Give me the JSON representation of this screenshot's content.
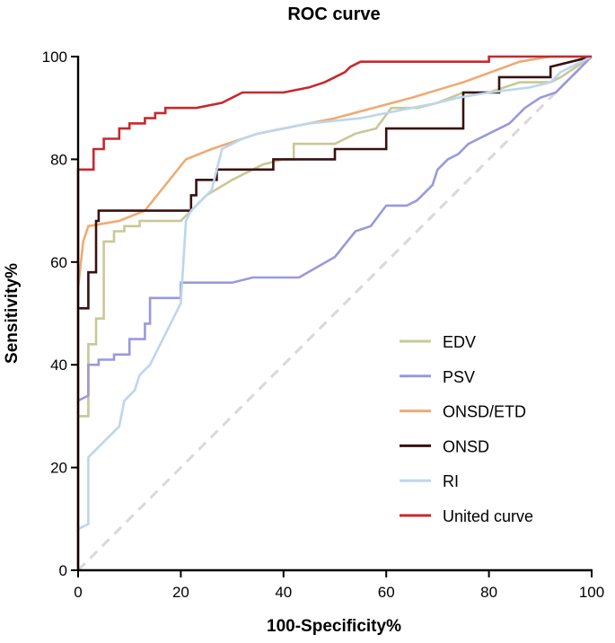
{
  "chart_data": {
    "type": "line",
    "title": "ROC curve",
    "xlabel": "100-Specificity%",
    "ylabel": "Sensitivity%",
    "xlim": [
      0,
      100
    ],
    "ylim": [
      0,
      100
    ],
    "xticks": [
      0,
      20,
      40,
      60,
      80,
      100
    ],
    "yticks": [
      0,
      20,
      40,
      60,
      80,
      100
    ],
    "legend_position": "bottom-right",
    "reference_line": {
      "name": "Reference",
      "color": "#d9d9d9",
      "style": "dashed",
      "points": [
        [
          0,
          0
        ],
        [
          100,
          100
        ]
      ]
    },
    "series": [
      {
        "name": "EDV",
        "color": "#c8c896",
        "points": [
          [
            0,
            30
          ],
          [
            2,
            30
          ],
          [
            2,
            44
          ],
          [
            3.5,
            44
          ],
          [
            3.5,
            49
          ],
          [
            5,
            49
          ],
          [
            5,
            64
          ],
          [
            7,
            64
          ],
          [
            7,
            66
          ],
          [
            9,
            66
          ],
          [
            9,
            67
          ],
          [
            12,
            67
          ],
          [
            12,
            68
          ],
          [
            20,
            68
          ],
          [
            22,
            70
          ],
          [
            25,
            73
          ],
          [
            30,
            76
          ],
          [
            36,
            79
          ],
          [
            40,
            80
          ],
          [
            42,
            80
          ],
          [
            42,
            83
          ],
          [
            50,
            83
          ],
          [
            54,
            85
          ],
          [
            58,
            86
          ],
          [
            61,
            90
          ],
          [
            66,
            90
          ],
          [
            70,
            91
          ],
          [
            75,
            93
          ],
          [
            80,
            93
          ],
          [
            86,
            95
          ],
          [
            92,
            95
          ],
          [
            94,
            96
          ],
          [
            100,
            100
          ]
        ]
      },
      {
        "name": "PSV",
        "color": "#9999dd",
        "points": [
          [
            0,
            33
          ],
          [
            2,
            34
          ],
          [
            2,
            40
          ],
          [
            4,
            40
          ],
          [
            4,
            41
          ],
          [
            7,
            41
          ],
          [
            7,
            42
          ],
          [
            10,
            42
          ],
          [
            10,
            45
          ],
          [
            13,
            45
          ],
          [
            13,
            48
          ],
          [
            14,
            48
          ],
          [
            14,
            53
          ],
          [
            20,
            53
          ],
          [
            20,
            56
          ],
          [
            30,
            56
          ],
          [
            34,
            57
          ],
          [
            43,
            57
          ],
          [
            50,
            61
          ],
          [
            54,
            66
          ],
          [
            57,
            67
          ],
          [
            60,
            71
          ],
          [
            64,
            71
          ],
          [
            66,
            72
          ],
          [
            69,
            75
          ],
          [
            70,
            78
          ],
          [
            72,
            80
          ],
          [
            74,
            81
          ],
          [
            76,
            83
          ],
          [
            80,
            85
          ],
          [
            84,
            87
          ],
          [
            87,
            90
          ],
          [
            90,
            92
          ],
          [
            93,
            93
          ],
          [
            95,
            95
          ],
          [
            100,
            100
          ]
        ]
      },
      {
        "name": "ONSD/ETD",
        "color": "#f0aa72",
        "points": [
          [
            0,
            55
          ],
          [
            1,
            64
          ],
          [
            2,
            67
          ],
          [
            8,
            68
          ],
          [
            13,
            70
          ],
          [
            17,
            75
          ],
          [
            21,
            80
          ],
          [
            26,
            82
          ],
          [
            35,
            85
          ],
          [
            50,
            88
          ],
          [
            65,
            92
          ],
          [
            75,
            95
          ],
          [
            86,
            99
          ],
          [
            92,
            100
          ],
          [
            100,
            100
          ]
        ]
      },
      {
        "name": "ONSD",
        "color": "#3a1010",
        "points": [
          [
            0,
            51
          ],
          [
            2,
            51
          ],
          [
            2,
            58
          ],
          [
            3.5,
            58
          ],
          [
            3.5,
            68
          ],
          [
            4,
            68
          ],
          [
            4,
            70
          ],
          [
            20,
            70
          ],
          [
            22,
            70
          ],
          [
            22,
            73
          ],
          [
            23,
            73
          ],
          [
            23,
            76
          ],
          [
            27,
            76
          ],
          [
            27,
            78
          ],
          [
            38,
            78
          ],
          [
            38,
            80
          ],
          [
            50,
            80
          ],
          [
            50,
            82
          ],
          [
            60,
            82
          ],
          [
            60,
            86
          ],
          [
            75,
            86
          ],
          [
            75,
            93
          ],
          [
            82,
            93
          ],
          [
            82,
            96
          ],
          [
            92,
            96
          ],
          [
            92,
            98
          ],
          [
            100,
            100
          ]
        ]
      },
      {
        "name": "RI",
        "color": "#bcd6ee",
        "points": [
          [
            0,
            8
          ],
          [
            2,
            9
          ],
          [
            2,
            22
          ],
          [
            4,
            24
          ],
          [
            6,
            26
          ],
          [
            8,
            28
          ],
          [
            9,
            33
          ],
          [
            11,
            35
          ],
          [
            12,
            38
          ],
          [
            14,
            40
          ],
          [
            16,
            44
          ],
          [
            18,
            48
          ],
          [
            20,
            52
          ],
          [
            21,
            68
          ],
          [
            22,
            70
          ],
          [
            24,
            72
          ],
          [
            26,
            74
          ],
          [
            28,
            82
          ],
          [
            32,
            84
          ],
          [
            35,
            85
          ],
          [
            40,
            86
          ],
          [
            45,
            87
          ],
          [
            55,
            88
          ],
          [
            60,
            89
          ],
          [
            65,
            90
          ],
          [
            70,
            91
          ],
          [
            74,
            92
          ],
          [
            80,
            93
          ],
          [
            88,
            94
          ],
          [
            92,
            95
          ],
          [
            94,
            97
          ],
          [
            100,
            100
          ]
        ]
      },
      {
        "name": "United curve",
        "color": "#c8282e",
        "points": [
          [
            0,
            0
          ],
          [
            0,
            78
          ],
          [
            3,
            78
          ],
          [
            3,
            82
          ],
          [
            5,
            82
          ],
          [
            5,
            84
          ],
          [
            8,
            84
          ],
          [
            8,
            86
          ],
          [
            10,
            86
          ],
          [
            10,
            87
          ],
          [
            13,
            87
          ],
          [
            13,
            88
          ],
          [
            15,
            88
          ],
          [
            15,
            89
          ],
          [
            17,
            89
          ],
          [
            17,
            90
          ],
          [
            20,
            90
          ],
          [
            23,
            90
          ],
          [
            28,
            91
          ],
          [
            30,
            92
          ],
          [
            32,
            93
          ],
          [
            40,
            93
          ],
          [
            45,
            94
          ],
          [
            48,
            95
          ],
          [
            50,
            96
          ],
          [
            52,
            97
          ],
          [
            53,
            98
          ],
          [
            55,
            99
          ],
          [
            80,
            99
          ],
          [
            80,
            100
          ],
          [
            100,
            100
          ]
        ]
      }
    ]
  }
}
